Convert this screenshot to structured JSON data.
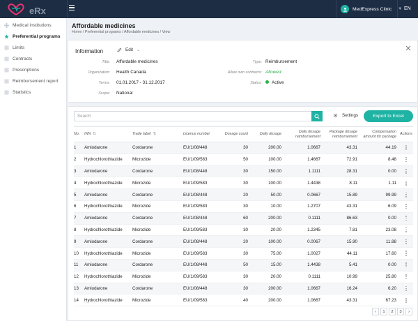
{
  "app": {
    "logo_text": "eRx",
    "brand_color": "#1d2d44",
    "accent": "#1fb3a4"
  },
  "header": {
    "clinic_name": "MedExpress Clinic",
    "lang": "EN"
  },
  "sidebar": {
    "items": [
      {
        "label": "Medical institutions",
        "icon": "plus-icon"
      },
      {
        "label": "Preferential programs",
        "icon": "star-icon",
        "active": true
      },
      {
        "label": "Limits",
        "icon": "document-icon"
      },
      {
        "label": "Contracts",
        "icon": "document-icon"
      },
      {
        "label": "Prescriptions",
        "icon": "document-icon"
      },
      {
        "label": "Reimbursement report",
        "icon": "document-icon"
      },
      {
        "label": "Statistics",
        "icon": "document-icon"
      }
    ]
  },
  "page": {
    "title": "Affordable medicines",
    "breadcrumb": "Home / Preferential programs / Affordable medicines / View"
  },
  "info": {
    "heading": "Information",
    "edit_label": "Edit",
    "fields": {
      "title_label": "Title:",
      "title_value": "Affordable medicines",
      "org_label": "Organization:",
      "org_value": "Health Canada",
      "terms_label": "Terms:",
      "terms_value": "01.01.2017 - 31.12.2017",
      "scope_label": "Scope:",
      "scope_value": "National",
      "type_label": "Type:",
      "type_value": "Reimbursement",
      "allow_label": "Allow own contracts:",
      "allow_value": "Allowed",
      "status_label": "Status:",
      "status_value": "Active"
    }
  },
  "table": {
    "search_placeholder": "Search",
    "settings_label": "Settings",
    "export_label": "Export to Excel",
    "columns": [
      "No.",
      "INN",
      "Trade label",
      "Licence number",
      "Dosage count",
      "Daily dosage",
      "Daily dosage reimbursement",
      "Package dosage reimbursement",
      "Compensation amount for package",
      "Actions"
    ],
    "rows": [
      [
        "1",
        "Amiodarone",
        "Cordarone",
        "EU/1/08/448",
        "30",
        "200.00",
        "1.0667",
        "43.31",
        "44.19"
      ],
      [
        "2",
        "Hydrochlorothiazide",
        "Microzide",
        "EU/1/09/583",
        "50",
        "100.00",
        "1.4667",
        "72.91",
        "8.48"
      ],
      [
        "3",
        "Amiodarone",
        "Cordarone",
        "EU/1/08/448",
        "30",
        "150.00",
        "1.1111",
        "28.31",
        "0.00"
      ],
      [
        "4",
        "Hydrochlorothiazide",
        "Microzide",
        "EU/1/09/583",
        "30",
        "100.00",
        "1.4438",
        "8.11",
        "1.11"
      ],
      [
        "5",
        "Amiodarone",
        "Cordarone",
        "EU/1/08/448",
        "20",
        "50.00",
        "0.0667",
        "15.89",
        "99.99"
      ],
      [
        "6",
        "Hydrochlorothiazide",
        "Microzide",
        "EU/1/09/583",
        "30",
        "10.00",
        "1.2707",
        "43.31",
        "6.09"
      ],
      [
        "7",
        "Amiodarone",
        "Cordarone",
        "EU/1/08/448",
        "60",
        "200.00",
        "0.1111",
        "86.63",
        "0.00"
      ],
      [
        "8",
        "Hydrochlorothiazide",
        "Microzide",
        "EU/1/09/583",
        "30",
        "20.00",
        "1.2345",
        "7.81",
        "23.08"
      ],
      [
        "9",
        "Amiodarone",
        "Cordarone",
        "EU/1/08/448",
        "20",
        "100.00",
        "0.0067",
        "15.90",
        "11.88"
      ],
      [
        "10",
        "Hydrochlorothiazide",
        "Microzide",
        "EU/1/09/583",
        "30",
        "75.00",
        "1.0027",
        "44.11",
        "17.60"
      ],
      [
        "11",
        "Amiodarone",
        "Cordarone",
        "EU/1/08/448",
        "50",
        "15.00",
        "1.4438",
        "5.41",
        "0.00"
      ],
      [
        "12",
        "Hydrochlorothiazide",
        "Microzide",
        "EU/1/09/583",
        "30",
        "20.00",
        "0.1111",
        "10.99",
        "25.80"
      ],
      [
        "13",
        "Amiodarone",
        "Cordarone",
        "EU/1/08/448",
        "30",
        "200.00",
        "1.0667",
        "16.24",
        "6.20"
      ],
      [
        "14",
        "Hydrochlorothiazide",
        "Microzide",
        "EU/1/09/583",
        "40",
        "200.00",
        "1.0667",
        "43.31",
        "67.23"
      ]
    ]
  },
  "pagination": {
    "prev": "‹",
    "pages": [
      "1",
      "2",
      "3"
    ],
    "next": "›"
  }
}
